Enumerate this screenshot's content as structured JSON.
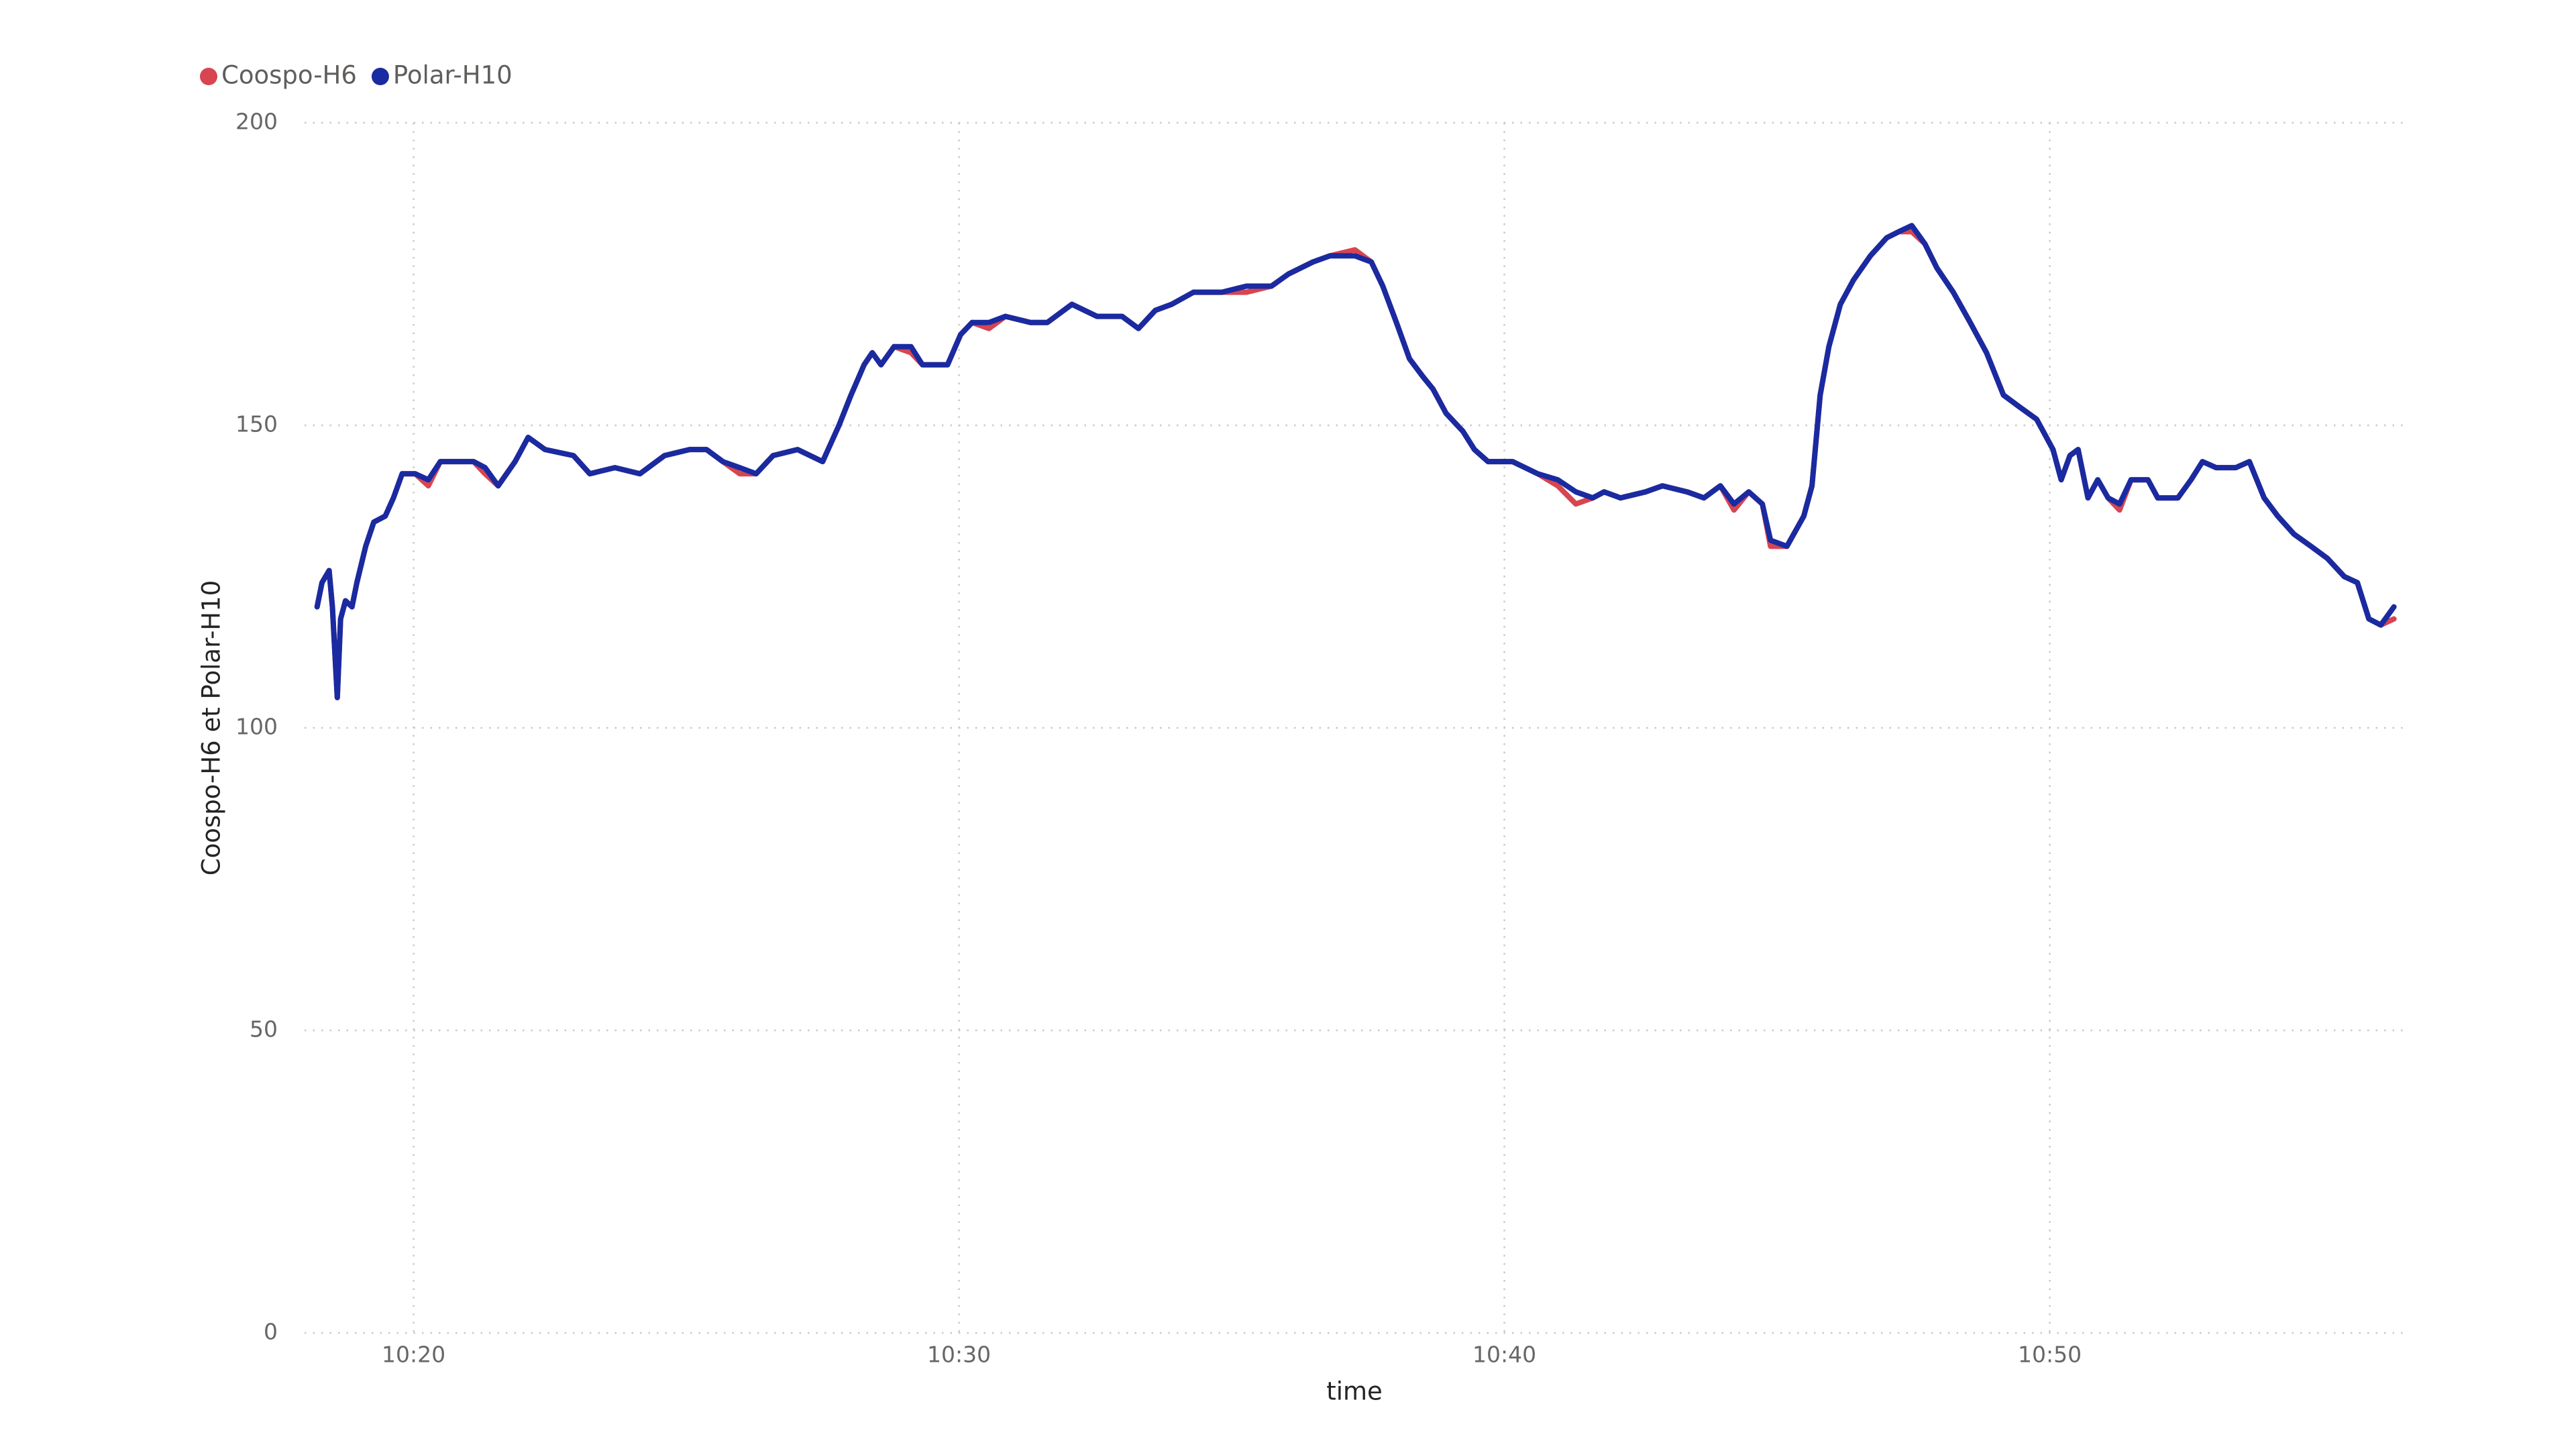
{
  "chart_data": {
    "type": "line",
    "x_label": "time",
    "y_label": "Coospo-H6 et Polar-H10",
    "x": [
      618.23,
      618.32,
      618.45,
      618.51,
      618.6,
      618.66,
      618.75,
      618.87,
      618.96,
      619.12,
      619.27,
      619.48,
      619.63,
      619.79,
      620.03,
      620.27,
      620.49,
      621.1,
      621.31,
      621.55,
      621.86,
      622.1,
      622.41,
      622.93,
      623.23,
      623.69,
      624.15,
      624.6,
      625.06,
      625.37,
      625.67,
      625.98,
      626.28,
      626.59,
      627.04,
      627.5,
      627.8,
      628.02,
      628.26,
      628.41,
      628.57,
      628.81,
      629.12,
      629.33,
      629.79,
      630.03,
      630.24,
      630.55,
      630.85,
      631.31,
      631.62,
      632.07,
      632.53,
      632.99,
      633.29,
      633.6,
      633.9,
      634.3,
      634.82,
      635.27,
      635.73,
      636.04,
      636.49,
      636.8,
      637.26,
      637.56,
      637.77,
      638.02,
      638.26,
      638.51,
      638.69,
      638.93,
      639.24,
      639.45,
      639.7,
      640.15,
      640.61,
      640.98,
      641.31,
      641.62,
      641.83,
      642.13,
      642.59,
      642.9,
      643.35,
      643.66,
      643.96,
      644.21,
      644.48,
      644.73,
      644.88,
      645.18,
      645.49,
      645.64,
      645.79,
      645.95,
      646.16,
      646.4,
      646.71,
      647.01,
      647.23,
      647.47,
      647.71,
      647.93,
      648.23,
      648.54,
      648.84,
      649.15,
      649.45,
      649.76,
      650.06,
      650.21,
      650.37,
      650.52,
      650.7,
      650.88,
      651.07,
      651.28,
      651.49,
      651.8,
      651.98,
      652.35,
      652.59,
      652.8,
      653.05,
      653.41,
      653.66,
      653.93,
      654.18,
      654.48,
      654.79,
      655.09,
      655.4,
      655.64,
      655.85,
      656.07,
      656.31
    ],
    "series": [
      {
        "name": "Coospo-H6",
        "color": "#d64550",
        "values": [
          120,
          124,
          126,
          120,
          105,
          118,
          121,
          120,
          124,
          130,
          134,
          135,
          138,
          142,
          142,
          140,
          144,
          144,
          142,
          140,
          144,
          148,
          146,
          145,
          142,
          143,
          142,
          145,
          146,
          146,
          144,
          142,
          142,
          145,
          146,
          144,
          150,
          155,
          160,
          162,
          160,
          163,
          162,
          160,
          160,
          165,
          167,
          166,
          168,
          167,
          167,
          170,
          168,
          168,
          166,
          169,
          170,
          172,
          172,
          172,
          173,
          175,
          177,
          178,
          179,
          177,
          173,
          167,
          161,
          158,
          156,
          152,
          149,
          146,
          144,
          144,
          142,
          140,
          137,
          138,
          139,
          138,
          139,
          140,
          139,
          138,
          140,
          136,
          139,
          137,
          130,
          130,
          135,
          140,
          155,
          163,
          170,
          174,
          178,
          181,
          182,
          182,
          180,
          176,
          172,
          167,
          162,
          155,
          153,
          151,
          146,
          141,
          145,
          146,
          138,
          141,
          138,
          136,
          141,
          141,
          138,
          138,
          141,
          144,
          143,
          143,
          144,
          138,
          135,
          132,
          130,
          128,
          125,
          124,
          118,
          117,
          118
        ]
      },
      {
        "name": "Polar-H10",
        "color": "#1a2aa0",
        "values": [
          120,
          124,
          126,
          120,
          105,
          118,
          121,
          120,
          124,
          130,
          134,
          135,
          138,
          142,
          142,
          141,
          144,
          144,
          143,
          140,
          144,
          148,
          146,
          145,
          142,
          143,
          142,
          145,
          146,
          146,
          144,
          143,
          142,
          145,
          146,
          144,
          150,
          155,
          160,
          162,
          160,
          163,
          163,
          160,
          160,
          165,
          167,
          167,
          168,
          167,
          167,
          170,
          168,
          168,
          166,
          169,
          170,
          172,
          172,
          173,
          173,
          175,
          177,
          178,
          178,
          177,
          173,
          167,
          161,
          158,
          156,
          152,
          149,
          146,
          144,
          144,
          142,
          141,
          139,
          138,
          139,
          138,
          139,
          140,
          139,
          138,
          140,
          137,
          139,
          137,
          131,
          130,
          135,
          140,
          155,
          163,
          170,
          174,
          178,
          181,
          182,
          183,
          180,
          176,
          172,
          167,
          162,
          155,
          153,
          151,
          146,
          141,
          145,
          146,
          138,
          141,
          138,
          137,
          141,
          141,
          138,
          138,
          141,
          144,
          143,
          143,
          144,
          138,
          135,
          132,
          130,
          128,
          125,
          124,
          118,
          117,
          120
        ]
      }
    ],
    "xlim": [
      618,
      656.5
    ],
    "xticks": [
      {
        "value": 620,
        "label": "10:20"
      },
      {
        "value": 630,
        "label": "10:30"
      },
      {
        "value": 640,
        "label": "10:40"
      },
      {
        "value": 650,
        "label": "10:50"
      }
    ],
    "ylim": [
      0,
      200
    ],
    "yticks": [
      0,
      50,
      100,
      150,
      200
    ],
    "grid": true,
    "legend": "top-left"
  }
}
